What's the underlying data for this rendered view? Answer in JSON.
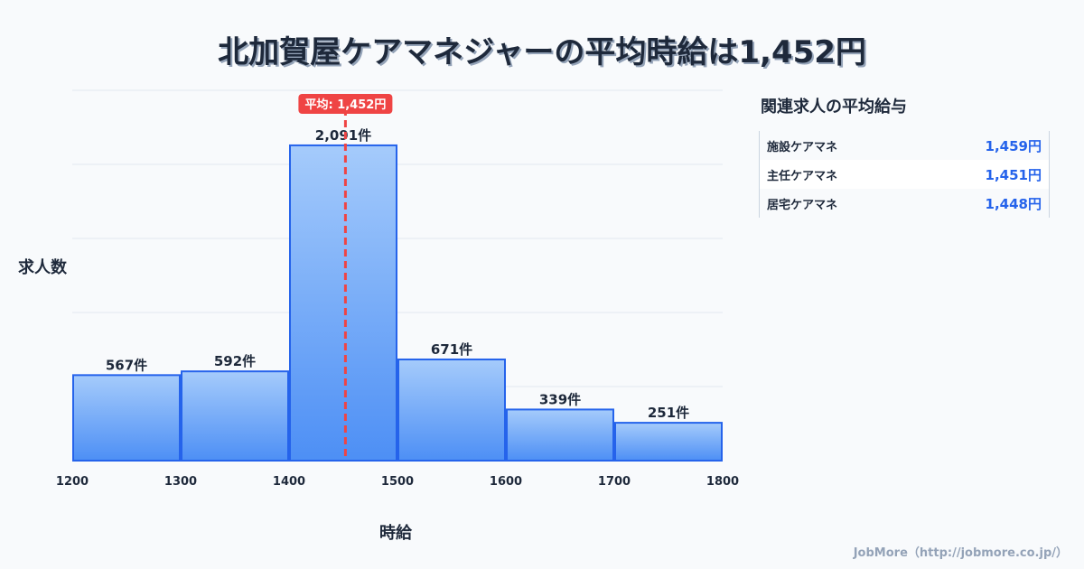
{
  "chart_data": {
    "type": "bar",
    "title": "北加賀屋ケアマネジャーの平均時給は1,452円",
    "xlabel": "時給",
    "ylabel": "求人数",
    "x_ticks": [
      "1200",
      "1300",
      "1400",
      "1500",
      "1600",
      "1700",
      "1800"
    ],
    "bins": [
      [
        1200,
        1300
      ],
      [
        1300,
        1400
      ],
      [
        1400,
        1500
      ],
      [
        1500,
        1600
      ],
      [
        1600,
        1700
      ],
      [
        1700,
        1800
      ]
    ],
    "values": [
      567,
      592,
      2091,
      671,
      339,
      251
    ],
    "labels": [
      "567件",
      "592件",
      "2,091件",
      "671件",
      "339件",
      "251件"
    ],
    "xlim": [
      1200,
      1800
    ],
    "ylim": [
      0,
      2456
    ],
    "grid": true,
    "mean": {
      "value": 1452,
      "label": "平均: 1,452円"
    },
    "colors": {
      "bar_top": "#a5cbfb",
      "bar_bottom": "#4d8ff5",
      "bar_edge": "#2563eb",
      "mean": "#ef4444"
    }
  },
  "sidebar": {
    "title": "関連求人の平均給与",
    "items": [
      {
        "label": "施設ケアマネ",
        "value": "1,459円"
      },
      {
        "label": "主任ケアマネ",
        "value": "1,451円"
      },
      {
        "label": "居宅ケアマネ",
        "value": "1,448円"
      }
    ]
  },
  "credit": "JobMore（http://jobmore.co.jp/）"
}
